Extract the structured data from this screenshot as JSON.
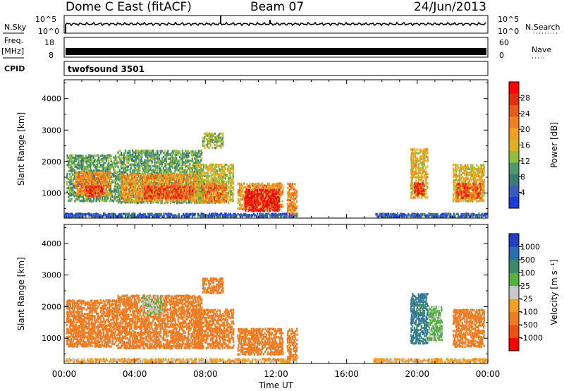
{
  "header": {
    "station": "Dome C East (fitACF)",
    "beam": "Beam 07",
    "date": "24/Jun/2013"
  },
  "status_panel": {
    "nsky_label": "N.Sky",
    "nsearch_label": "N.Search",
    "nsky_ticks": [
      "10^5",
      "10^0"
    ],
    "nsearch_ticks": [
      "10^5",
      "10^0"
    ],
    "freq_label_1": "Freq.",
    "freq_label_2": "[MHz]",
    "freq_ticks": [
      "18",
      "8"
    ],
    "nave_label": "Nave",
    "nave_ticks": [
      "60",
      "0"
    ],
    "cpid_label": "CPID",
    "cpid_value": "twofsound 3501"
  },
  "chart_data": [
    {
      "type": "heatmap",
      "parameter": "Power",
      "ylabel": "Slant Range [km]",
      "xlabel": "Time UT",
      "x_ticks": [
        "00:00",
        "04:00",
        "08:00",
        "12:00",
        "16:00",
        "20:00",
        "00:00"
      ],
      "x_range_hours": [
        0,
        24
      ],
      "y_ticks": [
        1000,
        2000,
        3000,
        4000
      ],
      "ylim": [
        200,
        4600
      ],
      "colorbar_label": "Power [dB]",
      "colorbar_ticks": [
        "4",
        "8",
        "12",
        "16",
        "20",
        "24",
        "28"
      ],
      "colorscale": [
        "#1f3bd6",
        "#3b5bbf",
        "#3a7d6e",
        "#4e9a6a",
        "#8fbf3a",
        "#e0b020",
        "#f2a020",
        "#f08020",
        "#e85a1a",
        "#e03010",
        "#ff0000"
      ],
      "regions": [
        {
          "t0": 0.0,
          "t1": 13.2,
          "r0": 210,
          "r1": 330,
          "value": 6
        },
        {
          "t0": 0.1,
          "t1": 3.0,
          "r0": 700,
          "r1": 2200,
          "value": 12
        },
        {
          "t0": 0.6,
          "t1": 2.6,
          "r0": 900,
          "r1": 1650,
          "value": 22
        },
        {
          "t0": 1.2,
          "t1": 2.2,
          "r0": 850,
          "r1": 1200,
          "value": 27
        },
        {
          "t0": 3.0,
          "t1": 7.8,
          "r0": 650,
          "r1": 2350,
          "value": 12
        },
        {
          "t0": 3.2,
          "t1": 7.6,
          "r0": 700,
          "r1": 1600,
          "value": 21
        },
        {
          "t0": 4.5,
          "t1": 7.3,
          "r0": 800,
          "r1": 1200,
          "value": 26
        },
        {
          "t0": 7.4,
          "t1": 9.6,
          "r0": 650,
          "r1": 1900,
          "value": 16
        },
        {
          "t0": 7.8,
          "t1": 9.2,
          "r0": 700,
          "r1": 1300,
          "value": 24
        },
        {
          "t0": 7.8,
          "t1": 9.0,
          "r0": 2400,
          "r1": 2900,
          "value": 14
        },
        {
          "t0": 9.8,
          "t1": 12.4,
          "r0": 450,
          "r1": 1300,
          "value": 21
        },
        {
          "t0": 10.2,
          "t1": 12.2,
          "r0": 400,
          "r1": 1100,
          "value": 30
        },
        {
          "t0": 12.6,
          "t1": 13.2,
          "r0": 300,
          "r1": 1300,
          "value": 22
        },
        {
          "t0": 19.6,
          "t1": 20.6,
          "r0": 800,
          "r1": 2400,
          "value": 18
        },
        {
          "t0": 19.8,
          "t1": 20.4,
          "r0": 900,
          "r1": 1300,
          "value": 27
        },
        {
          "t0": 22.0,
          "t1": 23.8,
          "r0": 700,
          "r1": 1900,
          "value": 18
        },
        {
          "t0": 22.2,
          "t1": 23.6,
          "r0": 800,
          "r1": 1300,
          "value": 26
        },
        {
          "t0": 17.5,
          "t1": 24.0,
          "r0": 210,
          "r1": 330,
          "value": 6
        }
      ]
    },
    {
      "type": "heatmap",
      "parameter": "Velocity",
      "ylabel": "Slant Range [km]",
      "xlabel": "Time UT",
      "x_ticks": [
        "00:00",
        "04:00",
        "08:00",
        "12:00",
        "16:00",
        "20:00",
        "00:00"
      ],
      "x_range_hours": [
        0,
        24
      ],
      "y_ticks": [
        1000,
        2000,
        3000,
        4000
      ],
      "ylim": [
        200,
        4600
      ],
      "colorbar_label": "Velocity [m s⁻¹]",
      "colorbar_ticks": [
        "1000",
        "500",
        "100",
        "25",
        "-25",
        "-100",
        "-500",
        "-1000"
      ],
      "colorscale": [
        "#2040c0",
        "#2a70b0",
        "#3a8a6a",
        "#55b040",
        "#c8c8c8",
        "#f2a020",
        "#f07a20",
        "#ee5010",
        "#ff0000"
      ],
      "regions": [
        {
          "t0": 0.0,
          "t1": 13.2,
          "r0": 210,
          "r1": 330,
          "value": -60
        },
        {
          "t0": 0.1,
          "t1": 3.0,
          "r0": 700,
          "r1": 2200,
          "value": -200
        },
        {
          "t0": 3.0,
          "t1": 7.8,
          "r0": 650,
          "r1": 2350,
          "value": -220
        },
        {
          "t0": 4.4,
          "t1": 5.6,
          "r0": 1700,
          "r1": 2300,
          "value": 20
        },
        {
          "t0": 7.4,
          "t1": 9.6,
          "r0": 650,
          "r1": 1900,
          "value": -200
        },
        {
          "t0": 7.8,
          "t1": 9.0,
          "r0": 2400,
          "r1": 2900,
          "value": -150
        },
        {
          "t0": 9.8,
          "t1": 12.4,
          "r0": 450,
          "r1": 1300,
          "value": -260
        },
        {
          "t0": 12.6,
          "t1": 13.2,
          "r0": 300,
          "r1": 1300,
          "value": -150
        },
        {
          "t0": 19.6,
          "t1": 20.6,
          "r0": 800,
          "r1": 2400,
          "value": 500
        },
        {
          "t0": 20.6,
          "t1": 21.4,
          "r0": 900,
          "r1": 2000,
          "value": 50
        },
        {
          "t0": 22.0,
          "t1": 23.8,
          "r0": 700,
          "r1": 1900,
          "value": -200
        },
        {
          "t0": 17.5,
          "t1": 24.0,
          "r0": 210,
          "r1": 330,
          "value": -60
        }
      ]
    }
  ]
}
